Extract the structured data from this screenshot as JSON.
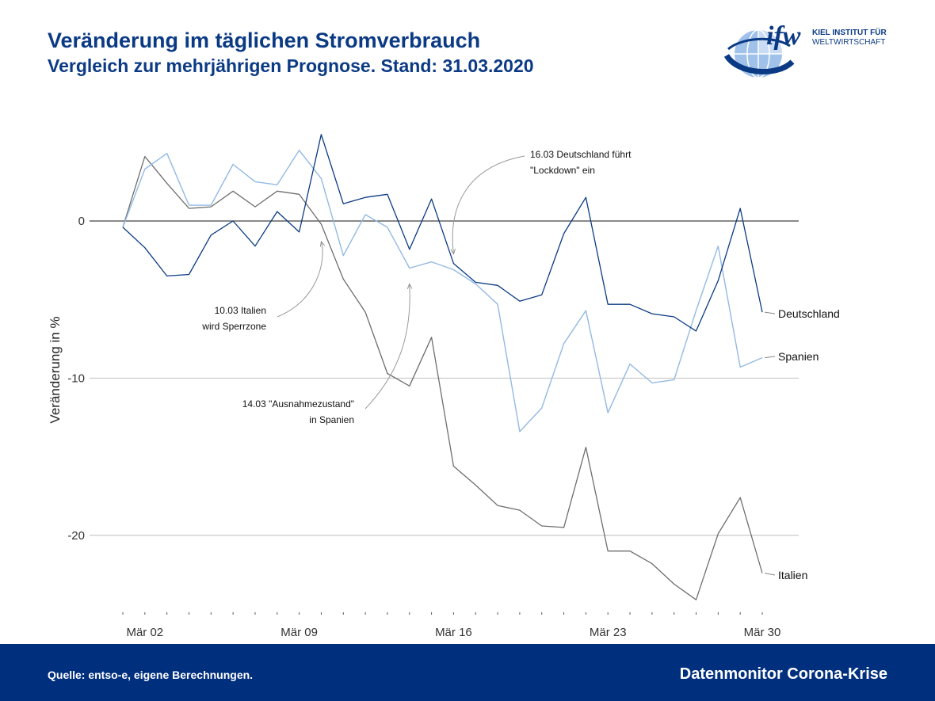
{
  "header": {
    "title": "Veränderung im täglichen Stromverbrauch",
    "subtitle": "Vergleich zur mehrjährigen Prognose. Stand: 31.03.2020"
  },
  "logo": {
    "mark": "ifw",
    "line1": "KIEL INSTITUT FÜR",
    "line2": "WELTWIRTSCHAFT",
    "icon": "globe-logo-icon"
  },
  "footer": {
    "source": "Quelle: entso-e, eigene Berechnungen.",
    "brand": "Datenmonitor Corona-Krise"
  },
  "colors": {
    "deutschland": "#0b3a84",
    "spanien": "#93b9e3",
    "italien": "#6e6e6e",
    "title": "#0b3a84",
    "footer": "#002f7e"
  },
  "chart_data": {
    "type": "line",
    "title": "Veränderung im täglichen Stromverbrauch",
    "subtitle": "Vergleich zur mehrjährigen Prognose. Stand: 31.03.2020",
    "xlabel": "",
    "ylabel": "Veränderung in %",
    "x": [
      "2020-03-01",
      "2020-03-02",
      "2020-03-03",
      "2020-03-04",
      "2020-03-05",
      "2020-03-06",
      "2020-03-07",
      "2020-03-08",
      "2020-03-09",
      "2020-03-10",
      "2020-03-11",
      "2020-03-12",
      "2020-03-13",
      "2020-03-14",
      "2020-03-15",
      "2020-03-16",
      "2020-03-17",
      "2020-03-18",
      "2020-03-19",
      "2020-03-20",
      "2020-03-21",
      "2020-03-22",
      "2020-03-23",
      "2020-03-24",
      "2020-03-25",
      "2020-03-26",
      "2020-03-27",
      "2020-03-28",
      "2020-03-29",
      "2020-03-30"
    ],
    "x_tick_labels": [
      "Mär 02",
      "Mär 09",
      "Mär 16",
      "Mär 23",
      "Mär 30"
    ],
    "x_tick_positions": [
      "2020-03-02",
      "2020-03-09",
      "2020-03-16",
      "2020-03-23",
      "2020-03-30"
    ],
    "y_ticks": [
      0,
      -10,
      -20
    ],
    "ylim": [
      -25.5,
      6.5
    ],
    "grid": "horizontal",
    "series": [
      {
        "name": "Deutschland",
        "color": "#0b3a84",
        "values": [
          -0.4,
          -1.7,
          -3.5,
          -3.4,
          -0.9,
          0.0,
          -1.6,
          0.6,
          -0.7,
          5.5,
          1.1,
          1.5,
          1.7,
          -1.8,
          1.4,
          -2.7,
          -3.9,
          -4.1,
          -5.1,
          -4.7,
          -0.8,
          1.5,
          -5.3,
          -5.3,
          -5.9,
          -6.1,
          -7.0,
          -3.8,
          0.8,
          -5.8
        ]
      },
      {
        "name": "Spanien",
        "color": "#93b9e3",
        "values": [
          -0.4,
          3.3,
          4.3,
          1.0,
          1.0,
          3.6,
          2.5,
          2.3,
          4.5,
          2.7,
          -2.2,
          0.4,
          -0.4,
          -3.0,
          -2.6,
          -3.1,
          -4.0,
          -5.3,
          -13.4,
          -11.9,
          -7.8,
          -5.7,
          -12.2,
          -9.1,
          -10.3,
          -10.1,
          -5.7,
          -1.6,
          -9.3,
          -8.7
        ]
      },
      {
        "name": "Italien",
        "color": "#6e6e6e",
        "values": [
          -0.4,
          4.1,
          2.4,
          0.8,
          0.9,
          1.9,
          0.9,
          1.9,
          1.7,
          -0.2,
          -3.7,
          -5.8,
          -9.7,
          -10.5,
          -7.4,
          -15.6,
          -16.8,
          -18.1,
          -18.4,
          -19.4,
          -19.5,
          -14.4,
          -21.0,
          -21.0,
          -21.8,
          -23.1,
          -24.1,
          -19.9,
          -17.6,
          -22.4
        ]
      }
    ],
    "annotations": [
      {
        "name": "annotation-italien",
        "text": [
          "10.03 Italien",
          "wird Sperrzone"
        ],
        "date": "2020-03-10",
        "value": -1.0
      },
      {
        "name": "annotation-spanien",
        "text": [
          "14.03 \"Ausnahmezustand\"",
          "in Spanien"
        ],
        "date": "2020-03-14",
        "value": -3.7
      },
      {
        "name": "annotation-deutschland",
        "text": [
          "16.03 Deutschland führt",
          "\"Lockdown\" ein"
        ],
        "date": "2020-03-16",
        "value": -1.8
      }
    ]
  }
}
